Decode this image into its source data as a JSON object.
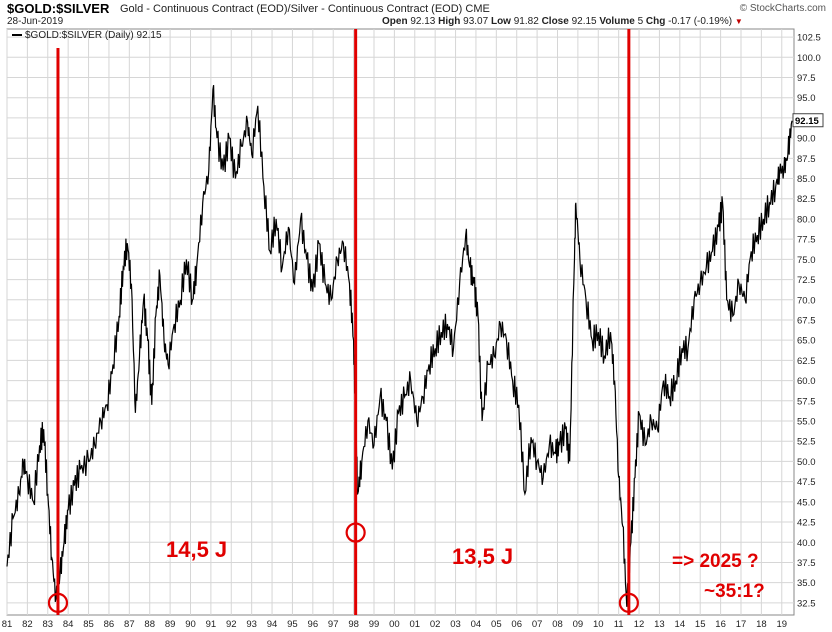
{
  "header": {
    "title": "$GOLD:$SILVER",
    "description": "Gold - Continuous Contract (EOD)/Silver - Continuous Contract (EOD)",
    "exchange": "CME",
    "date": "28-Jun-2019",
    "brand": "© StockCharts.com",
    "ohlc": {
      "open_label": "Open",
      "open": "92.13",
      "high_label": "High",
      "high": "93.07",
      "low_label": "Low",
      "low": "91.82",
      "close_label": "Close",
      "close": "92.15",
      "volume_label": "Volume",
      "volume": "5",
      "chg_label": "Chg",
      "chg": "-0.17 (-0.19%)"
    }
  },
  "chart_data": {
    "type": "line",
    "legend": "$GOLD:$SILVER (Daily) 92.15",
    "last_value_label": "92.15",
    "y_ticks": [
      32.5,
      35.0,
      37.5,
      40.0,
      42.5,
      45.0,
      47.5,
      50.0,
      52.5,
      55.0,
      57.5,
      60.0,
      62.5,
      65.0,
      67.5,
      70.0,
      72.5,
      75.0,
      77.5,
      80.0,
      82.5,
      85.0,
      87.5,
      90.0,
      92.5,
      95.0,
      97.5,
      100.0,
      102.5
    ],
    "ylim": [
      31.0,
      103.5
    ],
    "x_tick_labels": [
      "81",
      "82",
      "83",
      "84",
      "85",
      "86",
      "87",
      "88",
      "89",
      "90",
      "91",
      "92",
      "93",
      "94",
      "95",
      "96",
      "97",
      "98",
      "99",
      "00",
      "01",
      "02",
      "03",
      "04",
      "05",
      "06",
      "07",
      "08",
      "09",
      "10",
      "11",
      "12",
      "13",
      "14",
      "15",
      "16",
      "17",
      "18",
      "19"
    ],
    "xlim": [
      1981.0,
      2019.6
    ],
    "series": [
      {
        "values": [
          [
            1981.0,
            37
          ],
          [
            1981.3,
            43
          ],
          [
            1981.6,
            46
          ],
          [
            1981.8,
            50
          ],
          [
            1982.0,
            48
          ],
          [
            1982.3,
            45
          ],
          [
            1982.6,
            52
          ],
          [
            1982.8,
            54
          ],
          [
            1983.0,
            46
          ],
          [
            1983.2,
            38
          ],
          [
            1983.4,
            33
          ],
          [
            1983.6,
            36
          ],
          [
            1983.8,
            40
          ],
          [
            1984.0,
            44
          ],
          [
            1984.3,
            47
          ],
          [
            1984.6,
            49
          ],
          [
            1985.0,
            50
          ],
          [
            1985.3,
            52
          ],
          [
            1985.6,
            55
          ],
          [
            1985.9,
            57
          ],
          [
            1986.2,
            62
          ],
          [
            1986.5,
            68
          ],
          [
            1986.7,
            74
          ],
          [
            1986.9,
            77
          ],
          [
            1987.1,
            72
          ],
          [
            1987.3,
            56
          ],
          [
            1987.5,
            63
          ],
          [
            1987.7,
            70
          ],
          [
            1987.9,
            65
          ],
          [
            1988.1,
            57
          ],
          [
            1988.3,
            68
          ],
          [
            1988.5,
            73
          ],
          [
            1988.7,
            65
          ],
          [
            1988.9,
            62
          ],
          [
            1989.2,
            67
          ],
          [
            1989.5,
            70
          ],
          [
            1989.8,
            75
          ],
          [
            1990.1,
            70
          ],
          [
            1990.3,
            74
          ],
          [
            1990.6,
            82
          ],
          [
            1990.9,
            86
          ],
          [
            1991.1,
            96
          ],
          [
            1991.3,
            90
          ],
          [
            1991.6,
            86
          ],
          [
            1991.9,
            90
          ],
          [
            1992.2,
            85
          ],
          [
            1992.5,
            89
          ],
          [
            1992.8,
            92
          ],
          [
            1993.0,
            88
          ],
          [
            1993.3,
            94
          ],
          [
            1993.6,
            84
          ],
          [
            1993.9,
            76
          ],
          [
            1994.2,
            80
          ],
          [
            1994.5,
            74
          ],
          [
            1994.8,
            79
          ],
          [
            1995.1,
            72
          ],
          [
            1995.4,
            80
          ],
          [
            1995.7,
            75
          ],
          [
            1996.0,
            71
          ],
          [
            1996.3,
            77
          ],
          [
            1996.6,
            72
          ],
          [
            1996.9,
            70
          ],
          [
            1997.2,
            75
          ],
          [
            1997.5,
            77
          ],
          [
            1997.8,
            72
          ],
          [
            1998.0,
            65
          ],
          [
            1998.1,
            55
          ],
          [
            1998.2,
            46
          ],
          [
            1998.4,
            50
          ],
          [
            1998.7,
            55
          ],
          [
            1999.0,
            52
          ],
          [
            1999.3,
            58
          ],
          [
            1999.6,
            55
          ],
          [
            1999.9,
            49
          ],
          [
            2000.2,
            56
          ],
          [
            2000.5,
            58
          ],
          [
            2000.8,
            60
          ],
          [
            2001.1,
            55
          ],
          [
            2001.4,
            58
          ],
          [
            2001.7,
            62
          ],
          [
            2002.0,
            64
          ],
          [
            2002.3,
            66
          ],
          [
            2002.6,
            67
          ],
          [
            2002.9,
            64
          ],
          [
            2003.2,
            72
          ],
          [
            2003.5,
            78
          ],
          [
            2003.7,
            74
          ],
          [
            2003.9,
            72
          ],
          [
            2004.1,
            68
          ],
          [
            2004.3,
            55
          ],
          [
            2004.6,
            62
          ],
          [
            2004.9,
            63
          ],
          [
            2005.2,
            67
          ],
          [
            2005.5,
            65
          ],
          [
            2005.8,
            60
          ],
          [
            2006.1,
            57
          ],
          [
            2006.4,
            46
          ],
          [
            2006.7,
            53
          ],
          [
            2007.0,
            50
          ],
          [
            2007.3,
            48
          ],
          [
            2007.6,
            52
          ],
          [
            2007.9,
            51
          ],
          [
            2008.1,
            52
          ],
          [
            2008.4,
            54
          ],
          [
            2008.6,
            50
          ],
          [
            2008.8,
            72
          ],
          [
            2008.9,
            82
          ],
          [
            2009.1,
            75
          ],
          [
            2009.4,
            70
          ],
          [
            2009.7,
            65
          ],
          [
            2010.0,
            66
          ],
          [
            2010.3,
            63
          ],
          [
            2010.6,
            66
          ],
          [
            2010.8,
            60
          ],
          [
            2011.0,
            48
          ],
          [
            2011.2,
            42
          ],
          [
            2011.4,
            32
          ],
          [
            2011.6,
            40
          ],
          [
            2011.8,
            48
          ],
          [
            2012.0,
            56
          ],
          [
            2012.3,
            52
          ],
          [
            2012.6,
            55
          ],
          [
            2012.9,
            54
          ],
          [
            2013.2,
            60
          ],
          [
            2013.5,
            58
          ],
          [
            2013.8,
            60
          ],
          [
            2014.1,
            64
          ],
          [
            2014.4,
            64
          ],
          [
            2014.7,
            70
          ],
          [
            2015.0,
            72
          ],
          [
            2015.3,
            74
          ],
          [
            2015.6,
            76
          ],
          [
            2015.9,
            79
          ],
          [
            2016.1,
            82
          ],
          [
            2016.3,
            70
          ],
          [
            2016.6,
            68
          ],
          [
            2016.9,
            72
          ],
          [
            2017.2,
            70
          ],
          [
            2017.5,
            76
          ],
          [
            2017.8,
            78
          ],
          [
            2018.1,
            80
          ],
          [
            2018.4,
            82
          ],
          [
            2018.7,
            84
          ],
          [
            2018.9,
            86
          ],
          [
            2019.1,
            86
          ],
          [
            2019.3,
            88
          ],
          [
            2019.5,
            92.15
          ]
        ]
      }
    ],
    "annotations": {
      "cycle_1": "14,5 J",
      "cycle_2": "13,5 J",
      "forecast_1": "=> 2025 ?",
      "forecast_2": "~35:1?"
    },
    "markers": [
      {
        "x": 1983.5,
        "y": 32.5
      },
      {
        "x": 1998.1,
        "y": 41.2
      },
      {
        "x": 2011.5,
        "y": 32.5
      }
    ],
    "vertical_lines_x": [
      1983.5,
      1998.1,
      2011.5
    ],
    "colors": {
      "line": "#000000",
      "annotation": "#e00000",
      "grid": "#d6d6d6"
    }
  }
}
